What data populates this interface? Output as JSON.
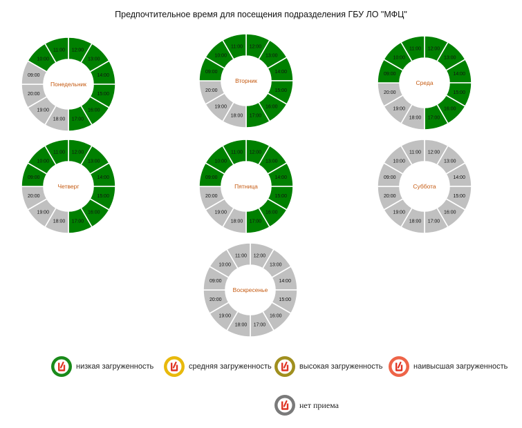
{
  "page": {
    "title": "Предпочтительное время для посещения подразделения ГБУ ЛО \"МФЦ\""
  },
  "colors": {
    "low": "#008000",
    "none": "#c0c0c0",
    "day_label": "#c55a11",
    "legend_low": "#1a8a1a",
    "legend_medium": "#e8b90c",
    "legend_high": "#a08f1e",
    "legend_highest": "#ee6448",
    "legend_closed": "#7a7a7a"
  },
  "chart_data": {
    "type": "donut",
    "hours": [
      "12:00",
      "13:00",
      "14:00",
      "15:00",
      "16:00",
      "17:00",
      "18:00",
      "19:00",
      "20:00",
      "09:00",
      "10:00",
      "11:00"
    ],
    "days": [
      {
        "name": "Понедельник",
        "status": [
          "low",
          "low",
          "low",
          "low",
          "low",
          "low",
          "none",
          "none",
          "none",
          "none",
          "low",
          "low"
        ]
      },
      {
        "name": "Вторник",
        "status": [
          "low",
          "low",
          "low",
          "low",
          "low",
          "low",
          "none",
          "none",
          "none",
          "low",
          "low",
          "low"
        ]
      },
      {
        "name": "Среда",
        "status": [
          "low",
          "low",
          "low",
          "low",
          "low",
          "low",
          "none",
          "none",
          "none",
          "low",
          "low",
          "low"
        ]
      },
      {
        "name": "Четверг",
        "status": [
          "low",
          "low",
          "low",
          "low",
          "low",
          "low",
          "none",
          "none",
          "none",
          "low",
          "low",
          "low"
        ]
      },
      {
        "name": "Пятница",
        "status": [
          "low",
          "low",
          "low",
          "low",
          "low",
          "low",
          "none",
          "none",
          "none",
          "low",
          "low",
          "low"
        ]
      },
      {
        "name": "Суббота",
        "status": [
          "none",
          "none",
          "none",
          "none",
          "none",
          "none",
          "none",
          "none",
          "none",
          "none",
          "none",
          "none"
        ]
      },
      {
        "name": "Воскресенье",
        "status": [
          "none",
          "none",
          "none",
          "none",
          "none",
          "none",
          "none",
          "none",
          "none",
          "none",
          "none",
          "none"
        ]
      }
    ]
  },
  "legend": [
    {
      "key": "low",
      "label": "низкая загруженность",
      "color_key": "legend_low"
    },
    {
      "key": "medium",
      "label": "средняя загруженность",
      "color_key": "legend_medium"
    },
    {
      "key": "high",
      "label": "высокая загруженность",
      "color_key": "legend_high"
    },
    {
      "key": "highest",
      "label": "наивысшая загруженность",
      "color_key": "legend_highest"
    },
    {
      "key": "closed",
      "label": "нет приема",
      "color_key": "legend_closed"
    }
  ]
}
